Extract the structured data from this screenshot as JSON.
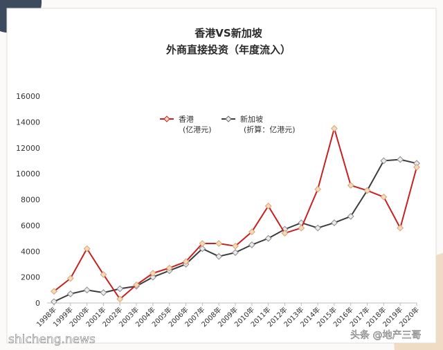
{
  "chart_data": {
    "type": "line",
    "title": [
      "香港VS新加坡",
      "外商直接投资（年度流入）"
    ],
    "xlabel": "",
    "ylabel": "",
    "ylim": [
      0,
      16000
    ],
    "yticks": [
      0,
      2000,
      4000,
      6000,
      8000,
      10000,
      12000,
      14000,
      16000
    ],
    "grid": false,
    "legend_position": "top-center",
    "categories": [
      "1998年",
      "1999年",
      "2000年",
      "2001年",
      "2002年",
      "2003年",
      "2004年",
      "2005年",
      "2006年",
      "2007年",
      "2008年",
      "2009年",
      "2010年",
      "2011年",
      "2012年",
      "2013年",
      "2014年",
      "2015年",
      "2016年",
      "2017年",
      "2018年",
      "2019年",
      "2020年"
    ],
    "series": [
      {
        "name": "香港",
        "unit_label": "(亿港元)",
        "color": "#c81f1f",
        "marker_fill": "#f5d9b8",
        "values": [
          900,
          1900,
          4200,
          2200,
          300,
          1400,
          2300,
          2700,
          3200,
          4600,
          4600,
          4400,
          5500,
          7500,
          5400,
          5800,
          8800,
          13500,
          9100,
          8700,
          8200,
          5800,
          10500
        ]
      },
      {
        "name": "新加坡",
        "unit_label": "(折算：亿港元)",
        "color": "#3c3c3c",
        "marker_fill": "#e9ebf1",
        "values": [
          100,
          700,
          1000,
          800,
          1100,
          1300,
          2000,
          2500,
          3000,
          4200,
          3600,
          3900,
          4500,
          5000,
          5700,
          6200,
          5800,
          6200,
          6700,
          8700,
          11000,
          11100,
          10800
        ]
      }
    ]
  },
  "decorations": {
    "corner_color_top": "#3c4b5e",
    "corner_color_bottom": "#f0dcc4"
  },
  "watermarks": {
    "left": "shicheng.news",
    "right": "头条 @地产三哥"
  }
}
